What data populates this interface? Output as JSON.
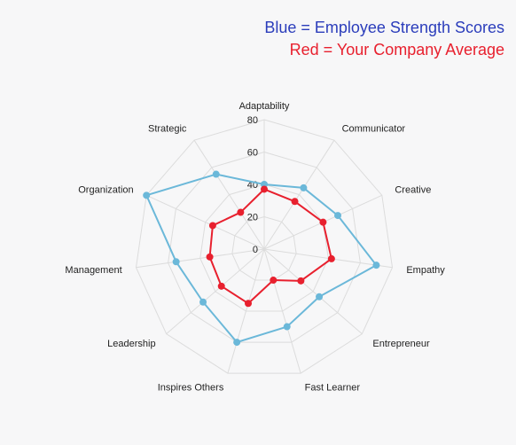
{
  "legend": {
    "blue_text": "Blue = Employee Strength Scores",
    "red_text": "Red = Your Company Average"
  },
  "chart_data": {
    "type": "radar",
    "categories": [
      "Adaptability",
      "Communicator",
      "Creative",
      "Empathy",
      "Entrepreneur",
      "Fast Learner",
      "Inspires Others",
      "Leadership",
      "Management",
      "Organization",
      "Strategic"
    ],
    "rlim": [
      0,
      80
    ],
    "ticks": [
      0,
      20,
      40,
      60,
      80
    ],
    "grid": true,
    "series": [
      {
        "name": "Employee Strength Scores",
        "color": "#6bb8d9",
        "values": [
          40,
          45,
          50,
          70,
          45,
          50,
          60,
          50,
          55,
          80,
          55
        ]
      },
      {
        "name": "Your Company Average",
        "color": "#e8202e",
        "values": [
          37,
          35,
          40,
          42,
          30,
          20,
          35,
          35,
          34,
          35,
          27
        ]
      }
    ]
  }
}
